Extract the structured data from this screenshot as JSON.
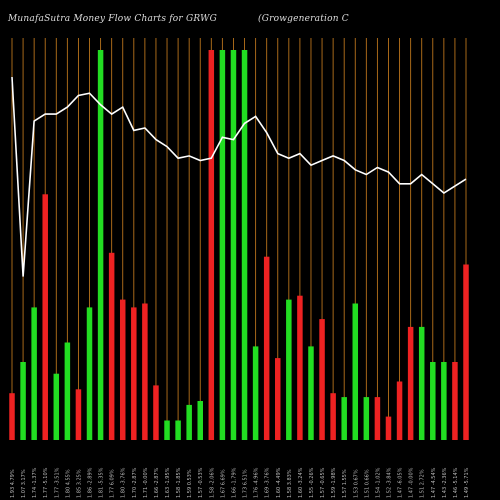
{
  "header": {
    "title_left": "MunafaSutra  Money Flow  Charts for GRWG",
    "title_right": "(Growgeneration  C"
  },
  "chart_data": {
    "type": "bar",
    "title": "MunafaSutra  Money Flow  Charts for GRWG",
    "subtitle": "(Growgeneration  C",
    "colors": {
      "background": "#000000",
      "gridline": "#b8731c",
      "up": "#22dd22",
      "down": "#ee2222",
      "price_line": "#ffffff"
    },
    "grid": true,
    "categories": [
      "1.93 4.79%",
      "1.07 3.17%",
      "1.74 -1.37%",
      "1.77 -5.10%",
      "1.77 -3.51%",
      "1.80 4.55%",
      "1.85 3.25%",
      "1.86 -2.89%",
      "1.81 -5.35%",
      "1.77 6.09%",
      "1.80 -3.76%",
      "1.70 -2.87%",
      "1.71 -0.00%",
      "1.66 -2.87%",
      "1.63 -1.95%",
      "1.58 -1.85%",
      "1.59 0.53%",
      "1.57 -0.53%",
      "1.58 -2.06%",
      "1.67 6.69%",
      "1.66 -1.79%",
      "1.73 6.51%",
      "1.76 -4.96%",
      "1.69 -3.76%",
      "1.60 -4.49%",
      "1.58 3.83%",
      "1.60 -3.24%",
      "1.55 -0.26%",
      "1.57 -0.65%",
      "1.59 -1.98%",
      "1.57 1.55%",
      "1.53 0.67%",
      "1.51 0.66%",
      "1.54 -1.02%",
      "1.52 -3.84%",
      "1.47 -6.05%",
      "1.47 -0.00%",
      "1.51 2.72%",
      "1.47 -4.54%",
      "1.43 -2.36%",
      "1.46 -5.14%",
      "1.49 -5.71%"
    ],
    "series": [
      {
        "values": [
          12,
          20,
          34,
          63,
          17,
          25,
          13,
          34,
          100,
          48,
          36,
          34,
          35,
          14,
          5,
          5,
          9,
          10,
          100,
          100,
          100,
          100,
          24,
          47,
          21,
          36,
          37,
          24,
          31,
          12,
          11,
          35,
          11,
          11,
          6,
          15,
          29,
          29,
          20,
          20,
          20,
          45
        ],
        "directions": [
          "down",
          "up",
          "up",
          "down",
          "up",
          "up",
          "down",
          "up",
          "up",
          "down",
          "down",
          "down",
          "down",
          "down",
          "up",
          "up",
          "up",
          "up",
          "down",
          "up",
          "up",
          "up",
          "up",
          "down",
          "down",
          "up",
          "down",
          "up",
          "down",
          "down",
          "up",
          "up",
          "up",
          "down",
          "down",
          "down",
          "down",
          "up",
          "up",
          "up",
          "down",
          "down"
        ]
      },
      {
        "price": [
          1.93,
          1.07,
          1.74,
          1.77,
          1.77,
          1.8,
          1.85,
          1.86,
          1.81,
          1.77,
          1.8,
          1.7,
          1.71,
          1.66,
          1.63,
          1.58,
          1.59,
          1.57,
          1.58,
          1.67,
          1.66,
          1.73,
          1.76,
          1.69,
          1.6,
          1.58,
          1.6,
          1.55,
          1.57,
          1.59,
          1.57,
          1.53,
          1.51,
          1.54,
          1.52,
          1.47,
          1.47,
          1.51,
          1.47,
          1.43,
          1.46,
          1.49
        ]
      }
    ]
  }
}
